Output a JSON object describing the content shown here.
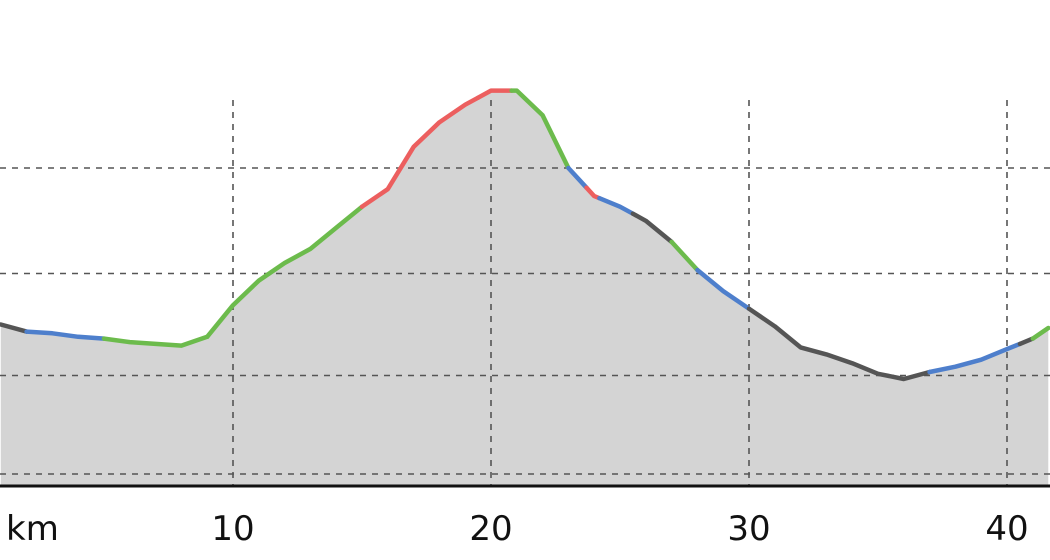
{
  "chart_data": {
    "type": "area",
    "title": "",
    "xlabel": "",
    "ylabel": "",
    "x_unit": "km",
    "xlim": [
      1,
      41.6
    ],
    "ylim": [
      0,
      100
    ],
    "x_ticks": [
      10,
      20,
      30,
      40
    ],
    "x_tick_labels": [
      "10",
      "20",
      "30",
      "40"
    ],
    "y_gridlines": [
      3,
      31,
      60,
      90
    ],
    "grid": true,
    "fill_color": "#d4d4d4",
    "baseline_color": "#111111",
    "grid_color": "#555555",
    "segment_colors": {
      "dark": "#555555",
      "blue": "#4e7fcc",
      "green": "#6cbb4c",
      "red": "#ec5f5f"
    },
    "profile": [
      [
        1.0,
        45.5
      ],
      [
        2.0,
        43.5
      ],
      [
        3.0,
        43.0
      ],
      [
        4.0,
        42.0
      ],
      [
        5.0,
        41.5
      ],
      [
        6.0,
        40.5
      ],
      [
        7.0,
        40.0
      ],
      [
        8.0,
        39.5
      ],
      [
        9.0,
        42.0
      ],
      [
        10.0,
        51.0
      ],
      [
        11.0,
        58.0
      ],
      [
        12.0,
        63.0
      ],
      [
        13.0,
        67.0
      ],
      [
        14.0,
        73.0
      ],
      [
        15.0,
        79.0
      ],
      [
        16.0,
        84.0
      ],
      [
        17.0,
        96.0
      ],
      [
        18.0,
        103.0
      ],
      [
        19.0,
        108.0
      ],
      [
        20.0,
        112.0
      ],
      [
        21.0,
        112.0
      ],
      [
        22.0,
        105.0
      ],
      [
        23.0,
        90.0
      ],
      [
        24.0,
        82.0
      ],
      [
        25.0,
        79.0
      ],
      [
        26.0,
        75.0
      ],
      [
        27.0,
        69.0
      ],
      [
        28.0,
        61.0
      ],
      [
        29.0,
        55.0
      ],
      [
        30.0,
        50.0
      ],
      [
        31.0,
        45.0
      ],
      [
        32.0,
        39.0
      ],
      [
        33.0,
        37.0
      ],
      [
        34.0,
        34.5
      ],
      [
        35.0,
        31.5
      ],
      [
        36.0,
        30.0
      ],
      [
        37.0,
        32.0
      ],
      [
        38.0,
        33.5
      ],
      [
        39.0,
        35.5
      ],
      [
        40.0,
        38.5
      ],
      [
        41.0,
        41.5
      ],
      [
        41.6,
        44.5
      ]
    ],
    "segments": [
      {
        "from": 1.0,
        "to": 2.0,
        "color": "dark"
      },
      {
        "from": 2.0,
        "to": 5.0,
        "color": "blue"
      },
      {
        "from": 5.0,
        "to": 9.0,
        "color": "green"
      },
      {
        "from": 9.0,
        "to": 15.0,
        "color": "green"
      },
      {
        "from": 15.0,
        "to": 19.5,
        "color": "red"
      },
      {
        "from": 19.5,
        "to": 20.8,
        "color": "red"
      },
      {
        "from": 20.8,
        "to": 23.0,
        "color": "green"
      },
      {
        "from": 23.0,
        "to": 23.7,
        "color": "blue"
      },
      {
        "from": 23.7,
        "to": 24.2,
        "color": "red"
      },
      {
        "from": 24.2,
        "to": 25.5,
        "color": "blue"
      },
      {
        "from": 25.5,
        "to": 27.0,
        "color": "dark"
      },
      {
        "from": 27.0,
        "to": 28.0,
        "color": "green"
      },
      {
        "from": 28.0,
        "to": 30.0,
        "color": "blue"
      },
      {
        "from": 30.0,
        "to": 37.0,
        "color": "dark"
      },
      {
        "from": 37.0,
        "to": 40.5,
        "color": "blue"
      },
      {
        "from": 40.5,
        "to": 41.0,
        "color": "dark"
      },
      {
        "from": 41.0,
        "to": 41.6,
        "color": "green"
      }
    ]
  }
}
